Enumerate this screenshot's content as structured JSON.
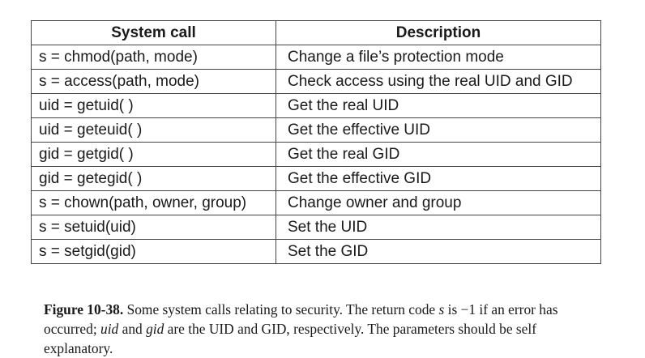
{
  "table": {
    "headers": [
      "System call",
      "Description"
    ],
    "rows": [
      {
        "call": "s = chmod(path, mode)",
        "desc": "Change a file’s protection mode"
      },
      {
        "call": "s = access(path, mode)",
        "desc": "Check access using the real UID and GID"
      },
      {
        "call": "uid = getuid( )",
        "desc": "Get the real UID"
      },
      {
        "call": "uid = geteuid( )",
        "desc": "Get the effective UID"
      },
      {
        "call": "gid = getgid( )",
        "desc": "Get the real GID"
      },
      {
        "call": "gid = getegid( )",
        "desc": "Get the effective GID"
      },
      {
        "call": "s = chown(path, owner, group)",
        "desc": "Change owner and group"
      },
      {
        "call": "s = setuid(uid)",
        "desc": "Set the UID"
      },
      {
        "call": "s = setgid(gid)",
        "desc": "Set the GID"
      }
    ]
  },
  "caption": {
    "label": "Figure 10-38.",
    "part1": " Some system calls relating to security. The return code ",
    "var_s": "s",
    "part2": " is −1 if an error has occurred; ",
    "var_uid": "uid",
    "part3": " and ",
    "var_gid": "gid",
    "part4": " are the UID and GID, respectively. The parameters should be self explanatory."
  }
}
